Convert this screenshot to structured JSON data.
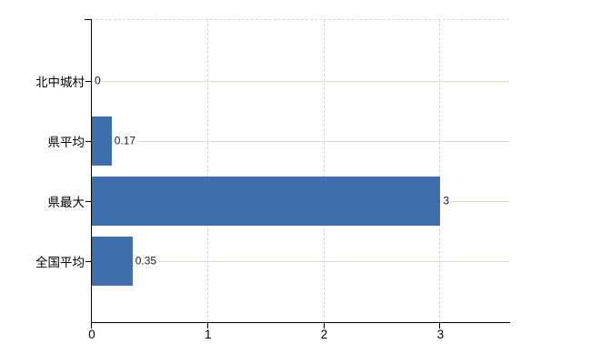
{
  "chart_data": {
    "type": "bar",
    "orientation": "horizontal",
    "title": "",
    "categories": [
      "北中城村",
      "県平均",
      "県最大",
      "全国平均"
    ],
    "values": [
      0,
      0.17,
      3,
      0.35
    ],
    "value_labels": [
      "0",
      "0.17",
      "3",
      "0.35"
    ],
    "x_ticks": [
      0,
      1,
      2,
      3
    ],
    "x_tick_labels": [
      "0",
      "1",
      "2",
      "3"
    ],
    "xlim": [
      0,
      3.6
    ],
    "grid": true,
    "legend": false,
    "colors": {
      "bar": "#3e6fac",
      "axis": "#000000",
      "h_gridline": "#d7ddd3",
      "v_gridline": "#d9d7da",
      "text": "#1a1a1a"
    }
  }
}
